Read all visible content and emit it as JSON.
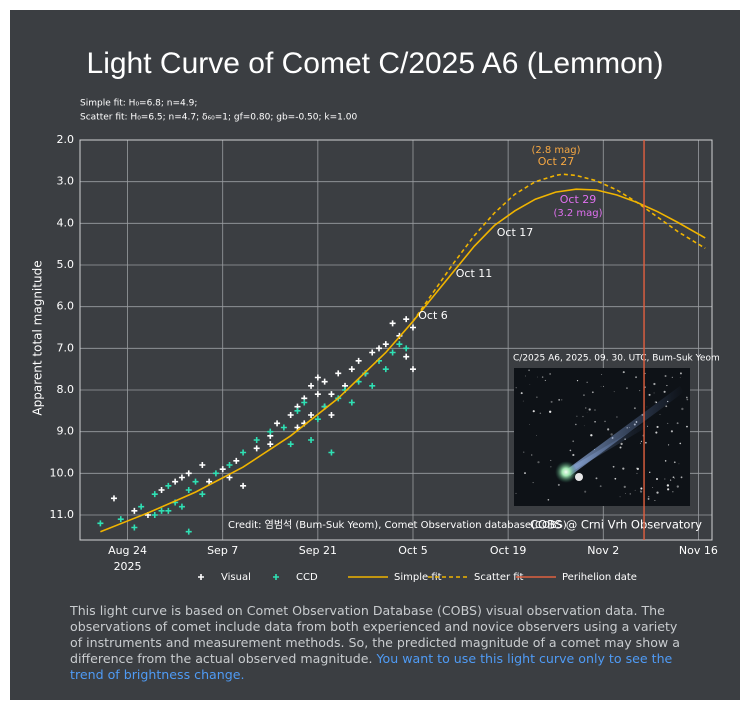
{
  "chart_data": {
    "type": "scatter",
    "title": "Light Curve of Comet C/2025 A6 (Lemmon)",
    "subtitle_lines": [
      "Simple fit: H₀=6.8; n=4.9;",
      "Scatter fit: H₀=6.5; n=4.7; δ₆₀=1; gf=0.80; gb=-0.50; k=1.00"
    ],
    "y_label": "Apparent total magnitude",
    "xlim": [
      "2025-08-17",
      "2025-11-18"
    ],
    "xticks": [
      {
        "value": "2025-08-24",
        "label": "Aug 24"
      },
      {
        "value": "2025-09-07",
        "label": "Sep 7"
      },
      {
        "value": "2025-09-21",
        "label": "Sep 21"
      },
      {
        "value": "2025-10-05",
        "label": "Oct 5"
      },
      {
        "value": "2025-10-19",
        "label": "Oct 19"
      },
      {
        "value": "2025-11-02",
        "label": "Nov 2"
      },
      {
        "value": "2025-11-16",
        "label": "Nov 16"
      }
    ],
    "x_year_label": "2025",
    "ylim": [
      11.6,
      2.0
    ],
    "yticks": [
      {
        "value": 2,
        "label": "2.0"
      },
      {
        "value": 3,
        "label": "3.0"
      },
      {
        "value": 4,
        "label": "4.0"
      },
      {
        "value": 5,
        "label": "5.0"
      },
      {
        "value": 6,
        "label": "6.0"
      },
      {
        "value": 7,
        "label": "7.0"
      },
      {
        "value": 8,
        "label": "8.0"
      },
      {
        "value": 9,
        "label": "9.0"
      },
      {
        "value": 10,
        "label": "10.0"
      },
      {
        "value": 11,
        "label": "11.0"
      }
    ],
    "grid": true,
    "series": [
      {
        "name": "Visual",
        "type": "scatter",
        "color": "#ffffff",
        "x": [
          "2025-08-22",
          "2025-08-25",
          "2025-08-27",
          "2025-08-29",
          "2025-08-31",
          "2025-09-01",
          "2025-09-02",
          "2025-09-04",
          "2025-09-05",
          "2025-09-07",
          "2025-09-08",
          "2025-09-09",
          "2025-09-10",
          "2025-09-12",
          "2025-09-14",
          "2025-09-14",
          "2025-09-15",
          "2025-09-17",
          "2025-09-18",
          "2025-09-18",
          "2025-09-19",
          "2025-09-19",
          "2025-09-20",
          "2025-09-20",
          "2025-09-21",
          "2025-09-21",
          "2025-09-22",
          "2025-09-22",
          "2025-09-23",
          "2025-09-23",
          "2025-09-24",
          "2025-09-25",
          "2025-09-26",
          "2025-09-27",
          "2025-09-28",
          "2025-09-29",
          "2025-09-30",
          "2025-10-01",
          "2025-10-02",
          "2025-10-03",
          "2025-10-04",
          "2025-10-04",
          "2025-10-05",
          "2025-10-05"
        ],
        "values": [
          10.6,
          10.9,
          11.0,
          10.4,
          10.2,
          10.1,
          10.0,
          9.8,
          10.2,
          9.9,
          10.1,
          9.7,
          10.3,
          9.4,
          9.1,
          9.3,
          8.8,
          8.6,
          8.9,
          8.4,
          8.2,
          8.8,
          7.9,
          8.6,
          8.1,
          7.7,
          7.8,
          8.4,
          8.1,
          8.6,
          7.6,
          7.9,
          7.5,
          7.3,
          7.6,
          7.1,
          7.0,
          6.9,
          6.4,
          6.7,
          6.3,
          7.2,
          6.5,
          7.5
        ]
      },
      {
        "name": "CCD",
        "type": "scatter",
        "color": "#2fe0b4",
        "x": [
          "2025-08-20",
          "2025-08-23",
          "2025-08-25",
          "2025-08-26",
          "2025-08-28",
          "2025-08-28",
          "2025-08-29",
          "2025-08-30",
          "2025-08-30",
          "2025-08-31",
          "2025-09-01",
          "2025-09-02",
          "2025-09-02",
          "2025-09-03",
          "2025-09-04",
          "2025-09-06",
          "2025-09-08",
          "2025-09-10",
          "2025-09-12",
          "2025-09-14",
          "2025-09-16",
          "2025-09-17",
          "2025-09-18",
          "2025-09-19",
          "2025-09-20",
          "2025-09-21",
          "2025-09-22",
          "2025-09-23",
          "2025-09-24",
          "2025-09-25",
          "2025-09-26",
          "2025-09-27",
          "2025-09-28",
          "2025-09-29",
          "2025-09-30",
          "2025-10-01",
          "2025-10-02",
          "2025-10-03",
          "2025-10-04"
        ],
        "values": [
          11.2,
          11.1,
          11.3,
          10.8,
          10.5,
          11.0,
          10.9,
          10.3,
          10.9,
          10.7,
          10.8,
          10.4,
          11.4,
          10.2,
          10.5,
          10.0,
          9.8,
          9.5,
          9.2,
          9.0,
          8.9,
          9.3,
          8.5,
          8.3,
          9.2,
          8.7,
          8.4,
          9.5,
          8.2,
          8.0,
          8.3,
          7.8,
          7.6,
          7.9,
          7.3,
          7.5,
          7.1,
          6.9,
          7.0
        ]
      },
      {
        "name": "Simple fit",
        "type": "line",
        "color": "#f0b400",
        "dash": false,
        "x": [
          "2025-08-20",
          "2025-08-27",
          "2025-09-03",
          "2025-09-10",
          "2025-09-17",
          "2025-09-24",
          "2025-10-01",
          "2025-10-05",
          "2025-10-08",
          "2025-10-11",
          "2025-10-14",
          "2025-10-17",
          "2025-10-20",
          "2025-10-23",
          "2025-10-26",
          "2025-10-29",
          "2025-11-01",
          "2025-11-04",
          "2025-11-07",
          "2025-11-10",
          "2025-11-13",
          "2025-11-17"
        ],
        "values": [
          11.4,
          10.95,
          10.45,
          9.85,
          9.1,
          8.2,
          7.1,
          6.35,
          5.75,
          5.15,
          4.55,
          4.05,
          3.7,
          3.42,
          3.25,
          3.18,
          3.2,
          3.32,
          3.5,
          3.72,
          3.98,
          4.35
        ]
      },
      {
        "name": "Scatter fit",
        "type": "line",
        "color": "#f0b400",
        "dash": true,
        "x": [
          "2025-10-05",
          "2025-10-08",
          "2025-10-11",
          "2025-10-14",
          "2025-10-17",
          "2025-10-20",
          "2025-10-23",
          "2025-10-26",
          "2025-10-27",
          "2025-10-29",
          "2025-11-01",
          "2025-11-04",
          "2025-11-07",
          "2025-11-10",
          "2025-11-13",
          "2025-11-17"
        ],
        "values": [
          6.35,
          5.65,
          4.95,
          4.3,
          3.75,
          3.3,
          3.0,
          2.85,
          2.82,
          2.85,
          2.98,
          3.2,
          3.5,
          3.85,
          4.2,
          4.6
        ]
      },
      {
        "name": "Perihelion date",
        "type": "vline",
        "color": "#e0603f",
        "x": "2025-11-08"
      }
    ],
    "annotations": [
      "(2.8 mag)",
      "Oct 27",
      "Oct 29",
      "(3.2 mag)",
      "Oct 17",
      "Oct 11",
      "Oct 6"
    ],
    "photo_caption": "C/2025 A6, 2025. 09. 30. UTC, Bum-Suk Yeom",
    "credit": "Credit: 염범석 (Bum-Suk Yeom), Comet Observation database(COBS)",
    "source": "COBS @ Crni Vrh Observatory"
  },
  "note": {
    "text": "This light curve is based on Comet Observation Database (COBS) visual observation data. The observations of comet include data from both experienced and novice observers using a variety of instruments and measurement methods. So, the predicted magnitude of a comet may show a difference from the actual observed magnitude.",
    "highlight": "You want to use this light curve only to see the trend of brightness change."
  }
}
